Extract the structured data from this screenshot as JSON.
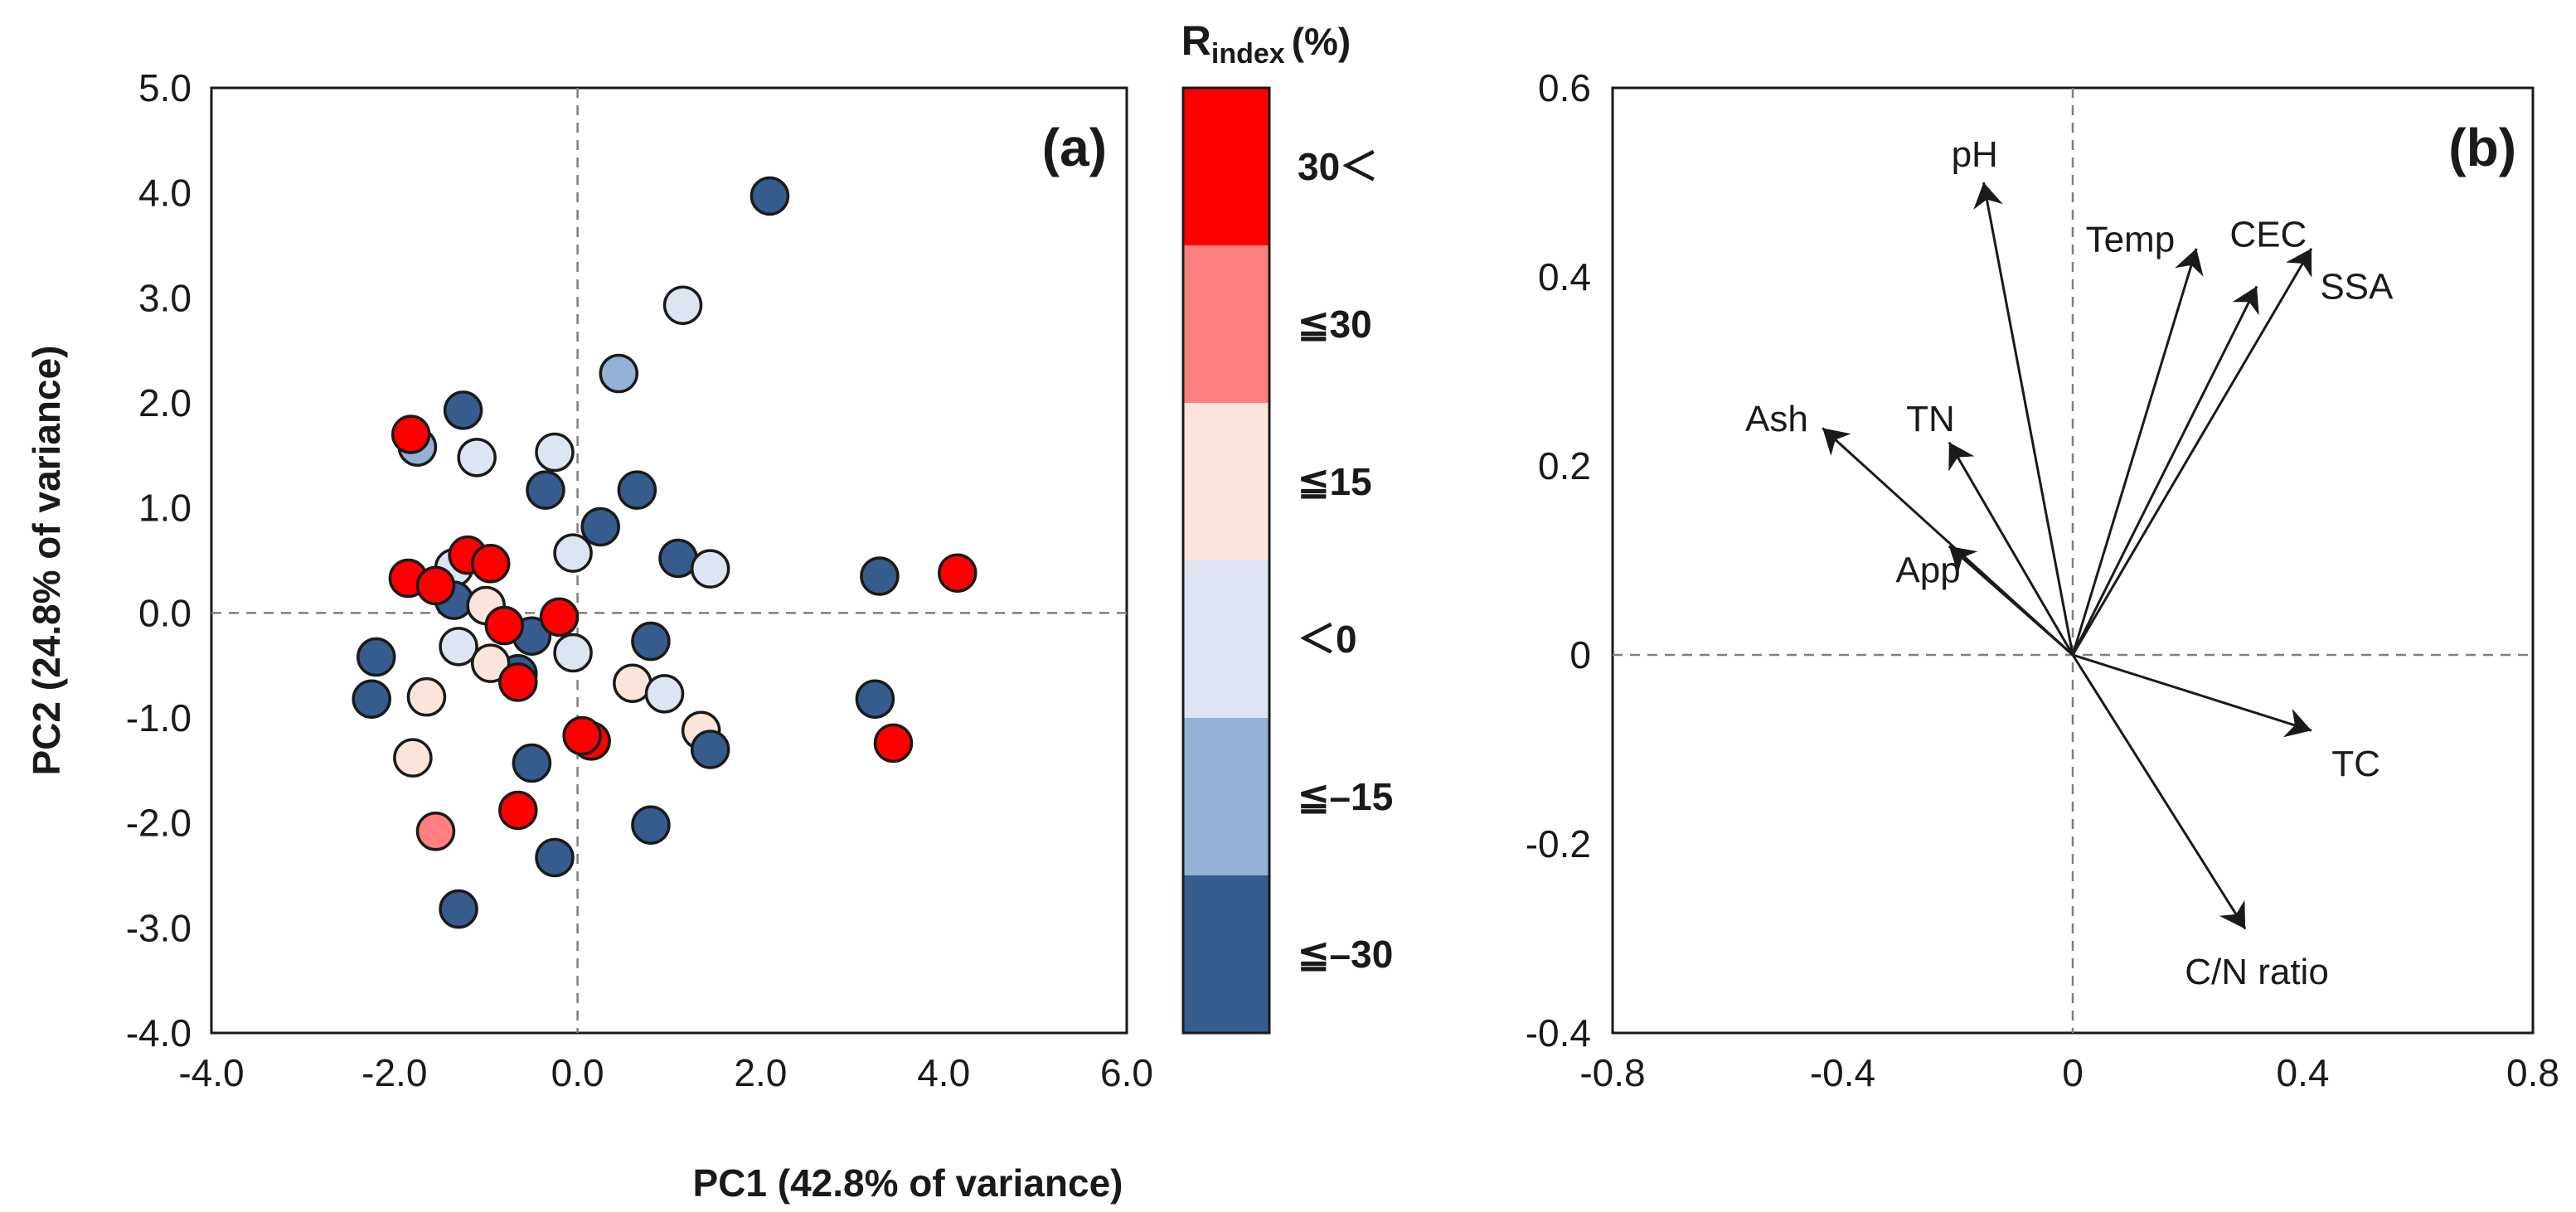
{
  "colors": {
    "lt_-30": "#355c8c",
    "lt_-15": "#93b2d6",
    "lt_0": "#dce5f1",
    "lt_15": "#fbe5da",
    "lt_30": "#ff7f7f",
    "gt_30": "#ff0000",
    "dot_stroke": "#1a1a1a",
    "guide": "#7f7f7f"
  },
  "legend": {
    "title_main": "R",
    "title_sub": "index",
    "title_unit": "(%)",
    "entries": [
      {
        "key": "gt_30",
        "label": "30＜"
      },
      {
        "key": "lt_30",
        "label": "≦30"
      },
      {
        "key": "lt_15",
        "label": "≦15"
      },
      {
        "key": "lt_0",
        "label": "＜0"
      },
      {
        "key": "lt_-15",
        "label": "≦–15"
      },
      {
        "key": "lt_-30",
        "label": "≦–30"
      }
    ]
  },
  "shared": {
    "xlabel": "PC1 (42.8% of variance)"
  },
  "chart_data": [
    {
      "type": "scatter",
      "panel_label": "(a)",
      "xlabel": "PC1 (42.8% of variance)",
      "ylabel": "PC2 (24.8% of variance)",
      "xlim": [
        -4.0,
        6.0
      ],
      "ylim": [
        -4.0,
        5.0
      ],
      "xticks": [
        "-4.0",
        "-2.0",
        "0.0",
        "2.0",
        "4.0",
        "6.0"
      ],
      "yticks": [
        "5.0",
        "4.0",
        "3.0",
        "2.0",
        "1.0",
        "0.0",
        "-1.0",
        "-2.0",
        "-3.0",
        "-4.0"
      ],
      "points": [
        {
          "x": 2.1,
          "y": 3.97,
          "c": "lt_-30"
        },
        {
          "x": 1.15,
          "y": 2.93,
          "c": "lt_0"
        },
        {
          "x": 0.45,
          "y": 2.28,
          "c": "lt_-15"
        },
        {
          "x": -1.25,
          "y": 1.93,
          "c": "lt_-30"
        },
        {
          "x": -1.75,
          "y": 1.58,
          "c": "lt_-15"
        },
        {
          "x": -1.1,
          "y": 1.48,
          "c": "lt_0"
        },
        {
          "x": -0.25,
          "y": 1.53,
          "c": "lt_0"
        },
        {
          "x": -0.35,
          "y": 1.17,
          "c": "lt_-30"
        },
        {
          "x": 0.65,
          "y": 1.17,
          "c": "lt_-30"
        },
        {
          "x": 0.25,
          "y": 0.82,
          "c": "lt_-30"
        },
        {
          "x": -0.05,
          "y": 0.57,
          "c": "lt_0"
        },
        {
          "x": 1.1,
          "y": 0.52,
          "c": "lt_-30"
        },
        {
          "x": 1.45,
          "y": 0.42,
          "c": "lt_0"
        },
        {
          "x": 3.3,
          "y": 0.35,
          "c": "lt_-30"
        },
        {
          "x": -1.35,
          "y": 0.43,
          "c": "lt_0"
        },
        {
          "x": -1.35,
          "y": 0.12,
          "c": "lt_-30"
        },
        {
          "x": -1.0,
          "y": 0.07,
          "c": "lt_15"
        },
        {
          "x": -1.3,
          "y": -0.32,
          "c": "lt_0"
        },
        {
          "x": -0.5,
          "y": -0.22,
          "c": "lt_-30"
        },
        {
          "x": -0.05,
          "y": -0.38,
          "c": "lt_0"
        },
        {
          "x": 0.8,
          "y": -0.27,
          "c": "lt_-30"
        },
        {
          "x": -2.2,
          "y": -0.42,
          "c": "lt_-30"
        },
        {
          "x": -0.65,
          "y": -0.58,
          "c": "lt_-30"
        },
        {
          "x": -0.95,
          "y": -0.48,
          "c": "lt_15"
        },
        {
          "x": -2.25,
          "y": -0.82,
          "c": "lt_-30"
        },
        {
          "x": -1.65,
          "y": -0.8,
          "c": "lt_15"
        },
        {
          "x": 0.6,
          "y": -0.67,
          "c": "lt_15"
        },
        {
          "x": 0.95,
          "y": -0.77,
          "c": "lt_0"
        },
        {
          "x": 3.25,
          "y": -0.82,
          "c": "lt_-30"
        },
        {
          "x": 1.35,
          "y": -1.12,
          "c": "lt_15"
        },
        {
          "x": 1.45,
          "y": -1.3,
          "c": "lt_-30"
        },
        {
          "x": -1.8,
          "y": -1.38,
          "c": "lt_15"
        },
        {
          "x": -0.5,
          "y": -1.43,
          "c": "lt_-30"
        },
        {
          "x": 0.8,
          "y": -2.02,
          "c": "lt_-30"
        },
        {
          "x": -0.25,
          "y": -2.33,
          "c": "lt_-30"
        },
        {
          "x": -1.3,
          "y": -2.82,
          "c": "lt_-30"
        },
        {
          "x": -1.55,
          "y": -2.08,
          "c": "lt_30"
        },
        {
          "x": -1.82,
          "y": 1.7,
          "c": "gt_30"
        },
        {
          "x": -1.85,
          "y": 0.33,
          "c": "gt_30"
        },
        {
          "x": -1.55,
          "y": 0.26,
          "c": "gt_30"
        },
        {
          "x": -1.2,
          "y": 0.55,
          "c": "gt_30"
        },
        {
          "x": -0.95,
          "y": 0.47,
          "c": "gt_30"
        },
        {
          "x": -0.8,
          "y": -0.12,
          "c": "gt_30"
        },
        {
          "x": -0.2,
          "y": -0.04,
          "c": "gt_30"
        },
        {
          "x": -0.65,
          "y": -0.66,
          "c": "gt_30"
        },
        {
          "x": 0.15,
          "y": -1.22,
          "c": "gt_30"
        },
        {
          "x": 0.05,
          "y": -1.17,
          "c": "gt_30"
        },
        {
          "x": -0.65,
          "y": -1.88,
          "c": "gt_30"
        },
        {
          "x": 4.15,
          "y": 0.38,
          "c": "gt_30"
        },
        {
          "x": 3.45,
          "y": -1.24,
          "c": "gt_30"
        }
      ]
    },
    {
      "type": "biplot",
      "panel_label": "(b)",
      "xlim": [
        -0.8,
        0.8
      ],
      "ylim": [
        -0.4,
        0.6
      ],
      "xticks": [
        "-0.8",
        "-0.4",
        "0",
        "0.4",
        "0.8"
      ],
      "yticks": [
        "0.6",
        "0.4",
        "0.2",
        "0",
        "-0.2",
        "-0.4"
      ],
      "vectors": [
        {
          "name": "pH",
          "x": -0.155,
          "y": 0.5,
          "anchor": "end",
          "lx": -0.13,
          "ly": 0.53
        },
        {
          "name": "Temp",
          "x": 0.215,
          "y": 0.43,
          "anchor": "middle",
          "lx": 0.1,
          "ly": 0.44
        },
        {
          "name": "CEC",
          "x": 0.32,
          "y": 0.39,
          "anchor": "middle",
          "lx": 0.34,
          "ly": 0.445
        },
        {
          "name": "SSA",
          "x": 0.415,
          "y": 0.43,
          "anchor": "start",
          "lx": 0.43,
          "ly": 0.39
        },
        {
          "name": "TN",
          "x": -0.215,
          "y": 0.225,
          "anchor": "end",
          "lx": -0.205,
          "ly": 0.25
        },
        {
          "name": "Ash",
          "x": -0.435,
          "y": 0.24,
          "anchor": "end",
          "lx": -0.46,
          "ly": 0.25
        },
        {
          "name": "App",
          "x": -0.215,
          "y": 0.115,
          "anchor": "end",
          "lx": -0.195,
          "ly": 0.09
        },
        {
          "name": "TC",
          "x": 0.415,
          "y": -0.08,
          "anchor": "start",
          "lx": 0.45,
          "ly": -0.115
        },
        {
          "name": "C/N ratio",
          "x": 0.3,
          "y": -0.29,
          "anchor": "middle",
          "lx": 0.32,
          "ly": -0.335
        }
      ]
    }
  ]
}
